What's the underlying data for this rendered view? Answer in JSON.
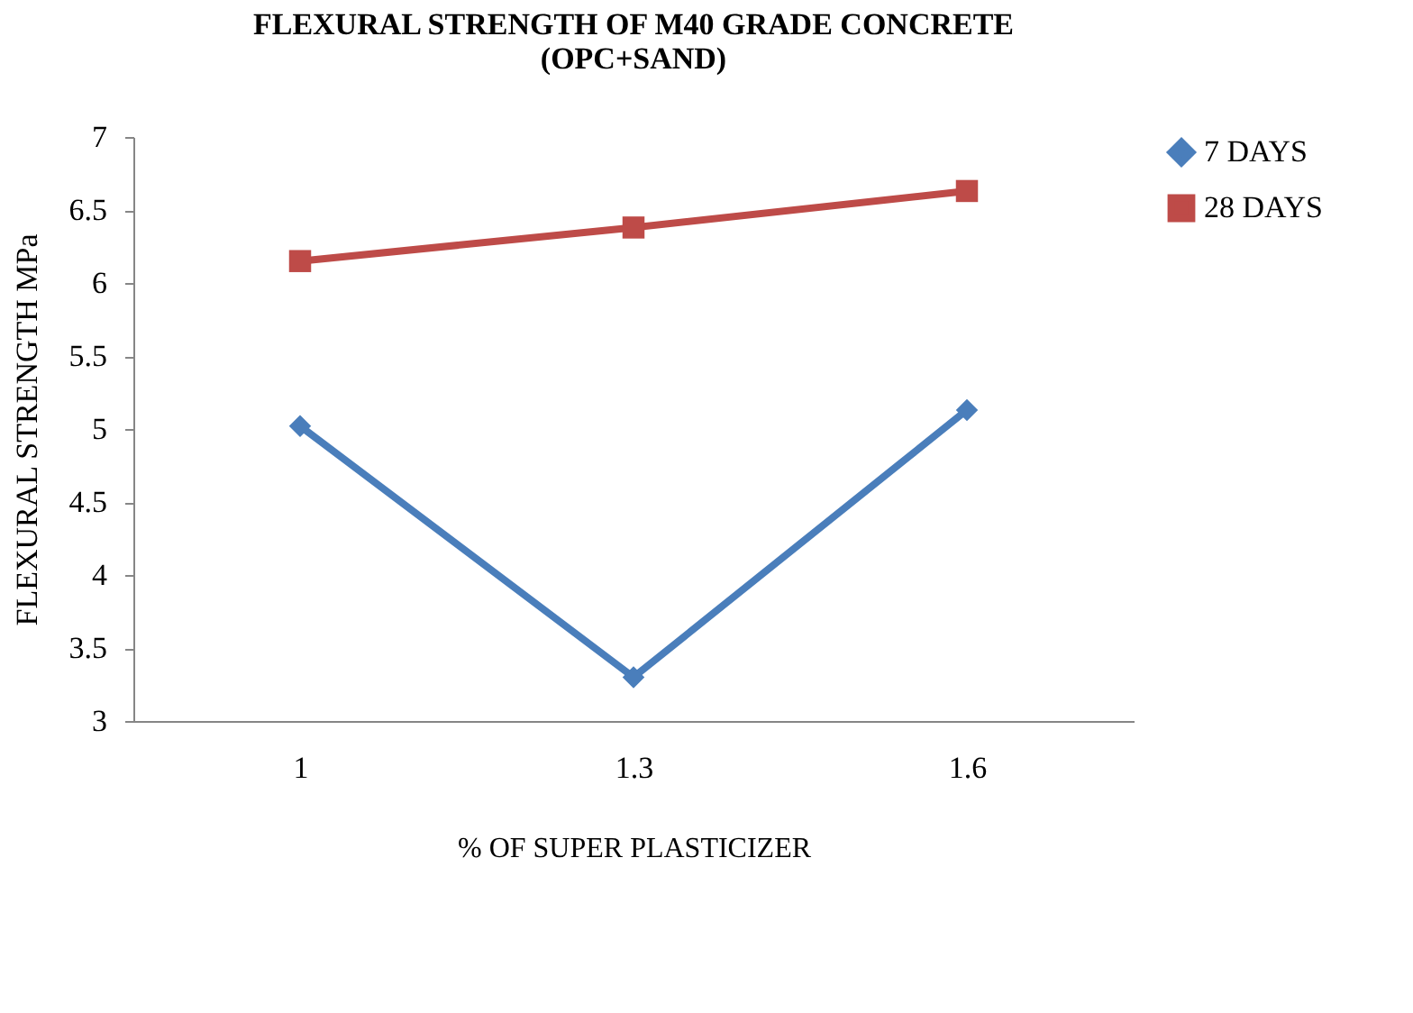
{
  "chart_data": {
    "type": "line",
    "title": [
      "FLEXURAL STRENGTH OF M40 GRADE CONCRETE",
      "(OPC+SAND)"
    ],
    "xlabel": "% OF SUPER PLASTICIZER",
    "ylabel": "FLEXURAL STRENGTH MPa",
    "categories": [
      "1",
      "1.3",
      "1.6"
    ],
    "series": [
      {
        "name": "7 DAYS",
        "color": "#4a7ebb",
        "marker": "diamond",
        "values": [
          5.02,
          3.3,
          5.13
        ]
      },
      {
        "name": "28 DAYS",
        "color": "#be4b48",
        "marker": "square",
        "values": [
          6.15,
          6.38,
          6.63
        ]
      }
    ],
    "ylim": [
      3,
      7
    ],
    "yticks": [
      3,
      3.5,
      4,
      4.5,
      5,
      5.5,
      6,
      6.5,
      7
    ],
    "grid": false,
    "legend": "right",
    "line_style": "solid"
  }
}
